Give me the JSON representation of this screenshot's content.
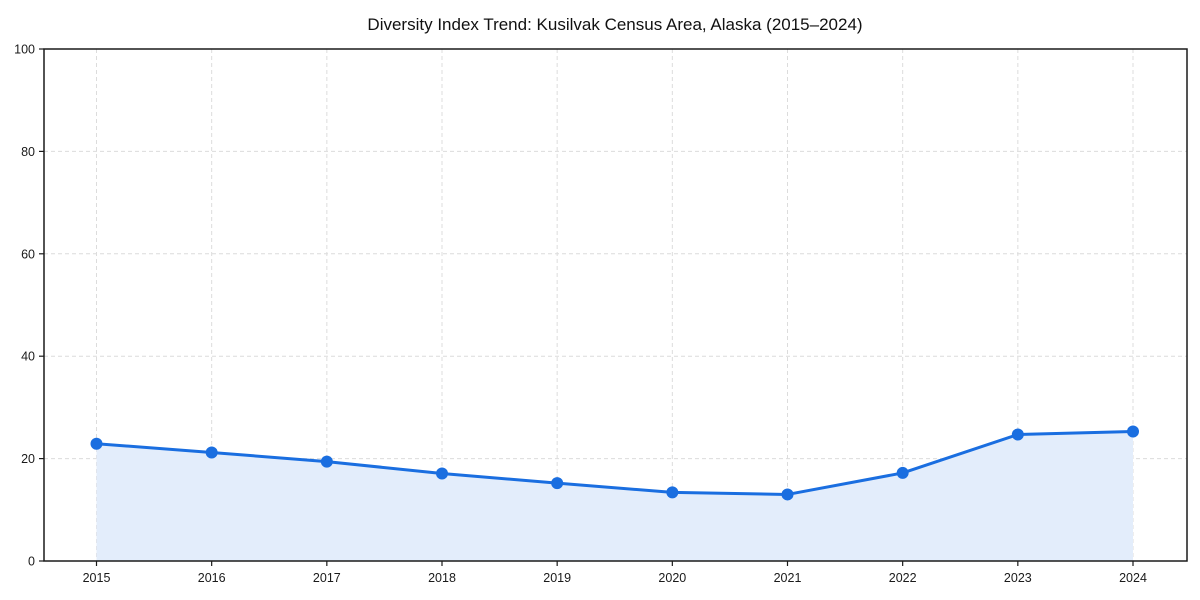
{
  "chart_data": {
    "type": "line",
    "title": "Diversity Index Trend: Kusilvak Census Area, Alaska (2015–2024)",
    "x": [
      2015,
      2016,
      2017,
      2018,
      2019,
      2020,
      2021,
      2022,
      2023,
      2024
    ],
    "values": [
      22.9,
      21.2,
      19.4,
      17.1,
      15.2,
      13.4,
      13.0,
      17.2,
      24.7,
      25.3
    ],
    "xlabel": "",
    "ylabel": "",
    "ylim": [
      0,
      100
    ],
    "y_ticks": [
      0,
      20,
      40,
      60,
      80,
      100
    ],
    "x_tick_labels": [
      "2015",
      "2016",
      "2017",
      "2018",
      "2019",
      "2020",
      "2021",
      "2022",
      "2023",
      "2024"
    ],
    "y_tick_labels": [
      "0",
      "20",
      "40",
      "60",
      "80",
      "100"
    ],
    "grid": true,
    "grid_style": "dashed",
    "legend_position": "none",
    "marker": "circle",
    "area_fill": true,
    "colors": {
      "line": "#1a6ee0",
      "area_fill": "#e3edfb",
      "grid": "#dcdcdc",
      "axis": "#1a1a1a",
      "text": "#1a1a1a",
      "background": "#ffffff"
    }
  }
}
